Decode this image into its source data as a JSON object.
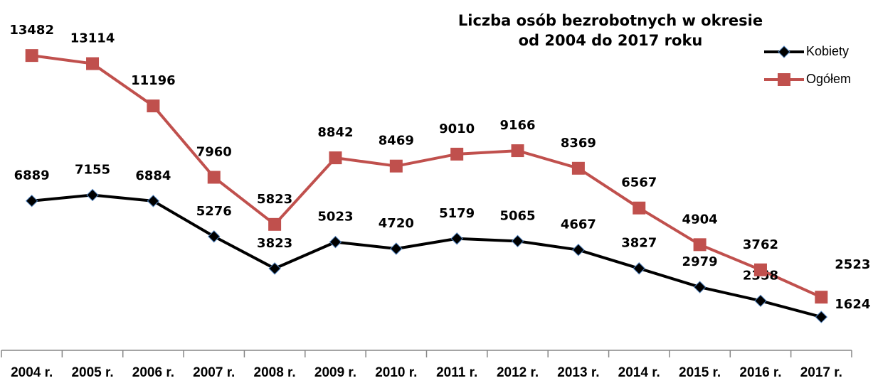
{
  "chart_data": {
    "type": "line",
    "title": [
      "Liczba osób bezrobotnych w okresie",
      "od 2004 do 2017 roku"
    ],
    "categories": [
      "2004 r.",
      "2005 r.",
      "2006 r.",
      "2007 r.",
      "2008 r.",
      "2009 r.",
      "2010 r.",
      "2011 r.",
      "2012 r.",
      "2013 r.",
      "2014 r.",
      "2015 r.",
      "2016 r.",
      "2017 r."
    ],
    "series": [
      {
        "name": "Kobiety",
        "color": "#000000",
        "marker": "diamond",
        "values": [
          6889,
          7155,
          6884,
          5276,
          3823,
          5023,
          4720,
          5179,
          5065,
          4667,
          3827,
          2979,
          2358,
          1624
        ]
      },
      {
        "name": "Ogółem",
        "color": "#c0504d",
        "marker": "square",
        "values": [
          13482,
          13114,
          11196,
          7960,
          5823,
          8842,
          8469,
          9010,
          9166,
          8369,
          6567,
          4904,
          3762,
          2523
        ]
      }
    ],
    "ylim": [
      0,
      16000
    ],
    "legend": "upper right"
  }
}
